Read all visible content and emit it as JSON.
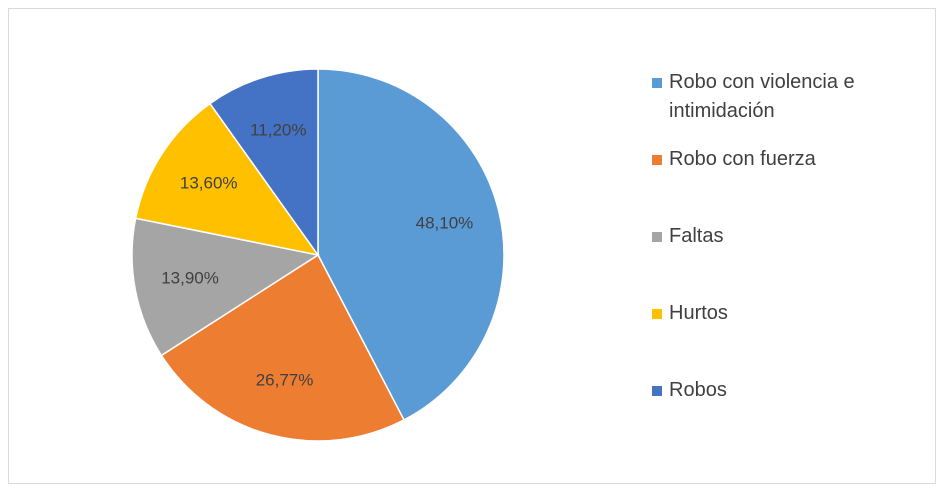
{
  "chart_data": {
    "type": "pie",
    "categories": [
      "Robo con violencia e intimidación",
      "Robo con fuerza",
      "Faltas",
      "Hurtos",
      "Robos"
    ],
    "values": [
      48.1,
      26.77,
      13.9,
      13.6,
      11.2
    ],
    "value_labels": [
      "48,10%",
      "26,77%",
      "13,90%",
      "13,60%",
      "11,20%"
    ],
    "colors": [
      "#5b9bd5",
      "#ed7d31",
      "#a5a5a5",
      "#ffc000",
      "#4472c4"
    ],
    "legend": "right"
  }
}
